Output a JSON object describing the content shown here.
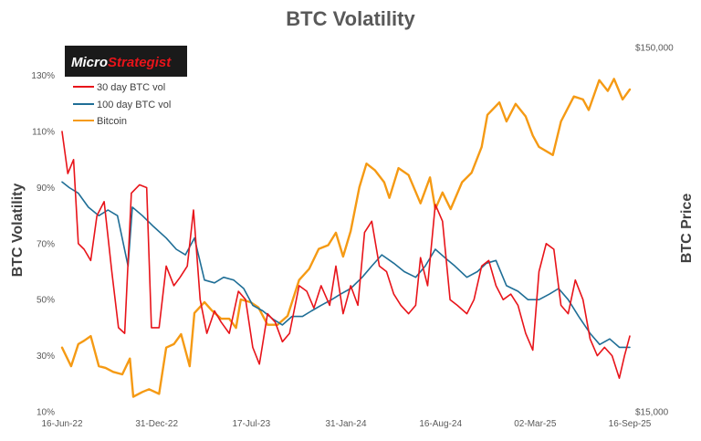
{
  "chart_data": {
    "type": "line",
    "title": "BTC Volatility",
    "ylabel": "BTC Volatility",
    "y2label": "BTC Price",
    "logo": {
      "part1": "Micro",
      "part2": "Strategist"
    },
    "colors": {
      "vol30": "#e8141a",
      "vol100": "#1f6e96",
      "btc": "#f59a14",
      "logo_bg": "#1a1a1a",
      "logo_accent": "#e8141a"
    },
    "grid": false,
    "legend_position": "top-left",
    "x_ticks": [
      "16-Jun-22",
      "31-Dec-22",
      "17-Jul-23",
      "31-Jan-24",
      "16-Aug-24",
      "02-Mar-25",
      "16-Sep-25"
    ],
    "x_range": [
      "2022-06-16",
      "2025-09-16"
    ],
    "y_ticks": [
      "10%",
      "30%",
      "50%",
      "70%",
      "90%",
      "110%",
      "130%"
    ],
    "y_range": [
      10,
      140
    ],
    "y2_ticks": [
      "$15,000",
      "$150,000"
    ],
    "y2_range": [
      15000,
      150000
    ],
    "y2_scale": "log",
    "series": [
      {
        "name": "30 day BTC vol",
        "key": "vol30",
        "points": [
          [
            "2022-06-16",
            110
          ],
          [
            "2022-06-28",
            95
          ],
          [
            "2022-07-10",
            100
          ],
          [
            "2022-07-20",
            70
          ],
          [
            "2022-08-01",
            68
          ],
          [
            "2022-08-15",
            64
          ],
          [
            "2022-08-28",
            80
          ],
          [
            "2022-09-12",
            85
          ],
          [
            "2022-09-28",
            60
          ],
          [
            "2022-10-12",
            40
          ],
          [
            "2022-10-25",
            38
          ],
          [
            "2022-11-08",
            88
          ],
          [
            "2022-11-25",
            91
          ],
          [
            "2022-12-10",
            90
          ],
          [
            "2022-12-20",
            40
          ],
          [
            "2023-01-05",
            40
          ],
          [
            "2023-01-20",
            62
          ],
          [
            "2023-02-05",
            55
          ],
          [
            "2023-02-18",
            58
          ],
          [
            "2023-03-05",
            62
          ],
          [
            "2023-03-18",
            82
          ],
          [
            "2023-04-01",
            50
          ],
          [
            "2023-04-15",
            38
          ],
          [
            "2023-05-01",
            46
          ],
          [
            "2023-05-15",
            42
          ],
          [
            "2023-06-01",
            38
          ],
          [
            "2023-06-20",
            53
          ],
          [
            "2023-07-05",
            50
          ],
          [
            "2023-07-20",
            33
          ],
          [
            "2023-08-03",
            27
          ],
          [
            "2023-08-20",
            45
          ],
          [
            "2023-09-05",
            42
          ],
          [
            "2023-09-20",
            35
          ],
          [
            "2023-10-05",
            38
          ],
          [
            "2023-10-25",
            55
          ],
          [
            "2023-11-10",
            53
          ],
          [
            "2023-11-25",
            47
          ],
          [
            "2023-12-10",
            55
          ],
          [
            "2023-12-28",
            48
          ],
          [
            "2024-01-10",
            62
          ],
          [
            "2024-01-25",
            45
          ],
          [
            "2024-02-10",
            55
          ],
          [
            "2024-02-25",
            48
          ],
          [
            "2024-03-10",
            74
          ],
          [
            "2024-03-25",
            78
          ],
          [
            "2024-04-10",
            62
          ],
          [
            "2024-04-25",
            60
          ],
          [
            "2024-05-10",
            52
          ],
          [
            "2024-05-25",
            48
          ],
          [
            "2024-06-10",
            45
          ],
          [
            "2024-06-25",
            48
          ],
          [
            "2024-07-05",
            65
          ],
          [
            "2024-07-20",
            55
          ],
          [
            "2024-08-05",
            84
          ],
          [
            "2024-08-20",
            78
          ],
          [
            "2024-09-05",
            50
          ],
          [
            "2024-09-20",
            48
          ],
          [
            "2024-10-10",
            45
          ],
          [
            "2024-10-25",
            50
          ],
          [
            "2024-11-10",
            62
          ],
          [
            "2024-11-25",
            64
          ],
          [
            "2024-12-10",
            55
          ],
          [
            "2024-12-25",
            50
          ],
          [
            "2025-01-10",
            52
          ],
          [
            "2025-01-25",
            48
          ],
          [
            "2025-02-10",
            38
          ],
          [
            "2025-02-25",
            32
          ],
          [
            "2025-03-10",
            60
          ],
          [
            "2025-03-25",
            70
          ],
          [
            "2025-04-10",
            68
          ],
          [
            "2025-04-25",
            48
          ],
          [
            "2025-05-10",
            45
          ],
          [
            "2025-05-25",
            57
          ],
          [
            "2025-06-10",
            50
          ],
          [
            "2025-06-25",
            36
          ],
          [
            "2025-07-10",
            30
          ],
          [
            "2025-07-25",
            33
          ],
          [
            "2025-08-10",
            30
          ],
          [
            "2025-08-25",
            22
          ],
          [
            "2025-09-05",
            30
          ],
          [
            "2025-09-16",
            37
          ]
        ]
      },
      {
        "name": "100 day BTC vol",
        "key": "vol100",
        "points": [
          [
            "2022-06-16",
            92
          ],
          [
            "2022-07-01",
            90
          ],
          [
            "2022-07-20",
            88
          ],
          [
            "2022-08-10",
            83
          ],
          [
            "2022-09-01",
            80
          ],
          [
            "2022-09-20",
            82
          ],
          [
            "2022-10-10",
            80
          ],
          [
            "2022-11-01",
            62
          ],
          [
            "2022-11-10",
            83
          ],
          [
            "2022-12-01",
            80
          ],
          [
            "2022-12-25",
            76
          ],
          [
            "2023-01-20",
            72
          ],
          [
            "2023-02-10",
            68
          ],
          [
            "2023-03-01",
            66
          ],
          [
            "2023-03-20",
            72
          ],
          [
            "2023-04-10",
            57
          ],
          [
            "2023-05-01",
            56
          ],
          [
            "2023-05-20",
            58
          ],
          [
            "2023-06-10",
            57
          ],
          [
            "2023-07-01",
            54
          ],
          [
            "2023-07-20",
            48
          ],
          [
            "2023-08-10",
            46
          ],
          [
            "2023-09-01",
            43
          ],
          [
            "2023-09-20",
            41
          ],
          [
            "2023-10-10",
            44
          ],
          [
            "2023-11-01",
            44
          ],
          [
            "2023-11-20",
            46
          ],
          [
            "2023-12-10",
            48
          ],
          [
            "2024-01-01",
            50
          ],
          [
            "2024-01-20",
            52
          ],
          [
            "2024-02-10",
            54
          ],
          [
            "2024-03-05",
            58
          ],
          [
            "2024-03-25",
            62
          ],
          [
            "2024-04-15",
            66
          ],
          [
            "2024-05-10",
            63
          ],
          [
            "2024-06-01",
            60
          ],
          [
            "2024-06-25",
            58
          ],
          [
            "2024-07-15",
            62
          ],
          [
            "2024-08-05",
            68
          ],
          [
            "2024-08-25",
            65
          ],
          [
            "2024-09-15",
            62
          ],
          [
            "2024-10-10",
            58
          ],
          [
            "2024-11-01",
            60
          ],
          [
            "2024-11-20",
            63
          ],
          [
            "2024-12-10",
            64
          ],
          [
            "2025-01-01",
            55
          ],
          [
            "2025-01-25",
            53
          ],
          [
            "2025-02-15",
            50
          ],
          [
            "2025-03-10",
            50
          ],
          [
            "2025-04-01",
            52
          ],
          [
            "2025-04-20",
            54
          ],
          [
            "2025-05-10",
            50
          ],
          [
            "2025-06-01",
            44
          ],
          [
            "2025-06-25",
            38
          ],
          [
            "2025-07-15",
            34
          ],
          [
            "2025-08-05",
            36
          ],
          [
            "2025-08-25",
            33
          ],
          [
            "2025-09-16",
            33
          ]
        ]
      },
      {
        "name": "Bitcoin",
        "key": "btc",
        "points": [
          [
            "2022-06-16",
            22500
          ],
          [
            "2022-07-05",
            20000
          ],
          [
            "2022-07-20",
            23000
          ],
          [
            "2022-08-01",
            23500
          ],
          [
            "2022-08-15",
            24200
          ],
          [
            "2022-09-01",
            20000
          ],
          [
            "2022-09-15",
            19800
          ],
          [
            "2022-10-01",
            19300
          ],
          [
            "2022-10-20",
            19000
          ],
          [
            "2022-11-05",
            21000
          ],
          [
            "2022-11-12",
            16500
          ],
          [
            "2022-12-01",
            17000
          ],
          [
            "2022-12-15",
            17300
          ],
          [
            "2023-01-05",
            16800
          ],
          [
            "2023-01-20",
            22500
          ],
          [
            "2023-02-05",
            23000
          ],
          [
            "2023-02-20",
            24500
          ],
          [
            "2023-03-10",
            20000
          ],
          [
            "2023-03-20",
            28000
          ],
          [
            "2023-04-10",
            30000
          ],
          [
            "2023-04-25",
            28500
          ],
          [
            "2023-05-15",
            27000
          ],
          [
            "2023-06-01",
            27000
          ],
          [
            "2023-06-15",
            25500
          ],
          [
            "2023-06-25",
            30500
          ],
          [
            "2023-07-15",
            30000
          ],
          [
            "2023-08-01",
            29000
          ],
          [
            "2023-08-20",
            26000
          ],
          [
            "2023-09-10",
            26000
          ],
          [
            "2023-10-01",
            27500
          ],
          [
            "2023-10-25",
            34500
          ],
          [
            "2023-11-15",
            37000
          ],
          [
            "2023-12-05",
            42000
          ],
          [
            "2023-12-25",
            43000
          ],
          [
            "2024-01-10",
            46500
          ],
          [
            "2024-01-25",
            40000
          ],
          [
            "2024-02-10",
            47000
          ],
          [
            "2024-02-28",
            62000
          ],
          [
            "2024-03-14",
            72000
          ],
          [
            "2024-04-01",
            69000
          ],
          [
            "2024-04-20",
            64000
          ],
          [
            "2024-05-01",
            58000
          ],
          [
            "2024-05-20",
            70000
          ],
          [
            "2024-06-10",
            67000
          ],
          [
            "2024-07-05",
            56000
          ],
          [
            "2024-07-25",
            66000
          ],
          [
            "2024-08-05",
            54000
          ],
          [
            "2024-08-20",
            60000
          ],
          [
            "2024-09-06",
            54000
          ],
          [
            "2024-09-30",
            64000
          ],
          [
            "2024-10-20",
            68000
          ],
          [
            "2024-11-10",
            80000
          ],
          [
            "2024-11-22",
            98000
          ],
          [
            "2024-12-17",
            106000
          ],
          [
            "2025-01-01",
            94000
          ],
          [
            "2025-01-20",
            105000
          ],
          [
            "2025-02-10",
            97000
          ],
          [
            "2025-02-25",
            86000
          ],
          [
            "2025-03-10",
            80000
          ],
          [
            "2025-04-08",
            76000
          ],
          [
            "2025-04-25",
            94000
          ],
          [
            "2025-05-22",
            110000
          ],
          [
            "2025-06-10",
            108000
          ],
          [
            "2025-06-22",
            101000
          ],
          [
            "2025-07-14",
            122000
          ],
          [
            "2025-08-01",
            114000
          ],
          [
            "2025-08-14",
            123000
          ],
          [
            "2025-09-01",
            108000
          ],
          [
            "2025-09-16",
            115000
          ]
        ]
      }
    ]
  }
}
